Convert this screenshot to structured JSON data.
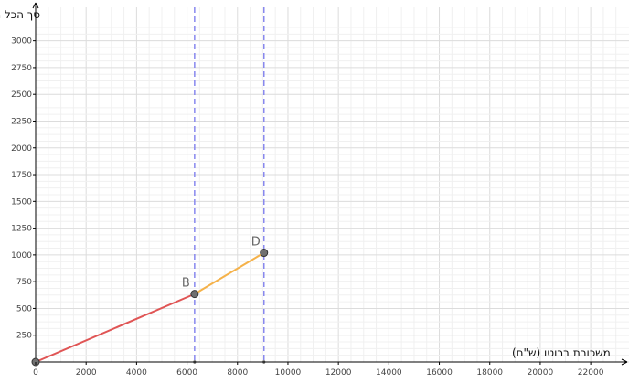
{
  "chart_data": {
    "type": "line",
    "xlabel": "משכורת ברוטו (ש\"ח)",
    "ylabel": "סך הכל מס הכנסה (ש\"ח)",
    "xlim": [
      0,
      23500
    ],
    "ylim": [
      0,
      3150
    ],
    "x_ticks": [
      0,
      2000,
      4000,
      6000,
      8000,
      10000,
      12000,
      14000,
      16000,
      18000,
      20000,
      22000
    ],
    "y_ticks": [
      250,
      500,
      750,
      1000,
      1250,
      1500,
      1750,
      2000,
      2250,
      2500,
      2750,
      3000
    ],
    "grid": true,
    "vertical_lines": [
      6300,
      9050
    ],
    "series": [
      {
        "color": "#e05555",
        "points": [
          [
            0,
            0
          ],
          [
            6300,
            635
          ]
        ]
      },
      {
        "color": "#f5b24a",
        "points": [
          [
            6300,
            635
          ],
          [
            9050,
            1020
          ]
        ]
      }
    ],
    "points": [
      {
        "label": "",
        "x": 0,
        "y": 0
      },
      {
        "label": "B",
        "x": 6300,
        "y": 635
      },
      {
        "label": "D",
        "x": 9050,
        "y": 1020
      }
    ],
    "colors": {
      "grid_minor": "#f0f0f0",
      "grid_major": "#dcdcdc",
      "axis": "#000000",
      "vertical_line": "#8888ee",
      "point_fill": "#707070"
    }
  }
}
